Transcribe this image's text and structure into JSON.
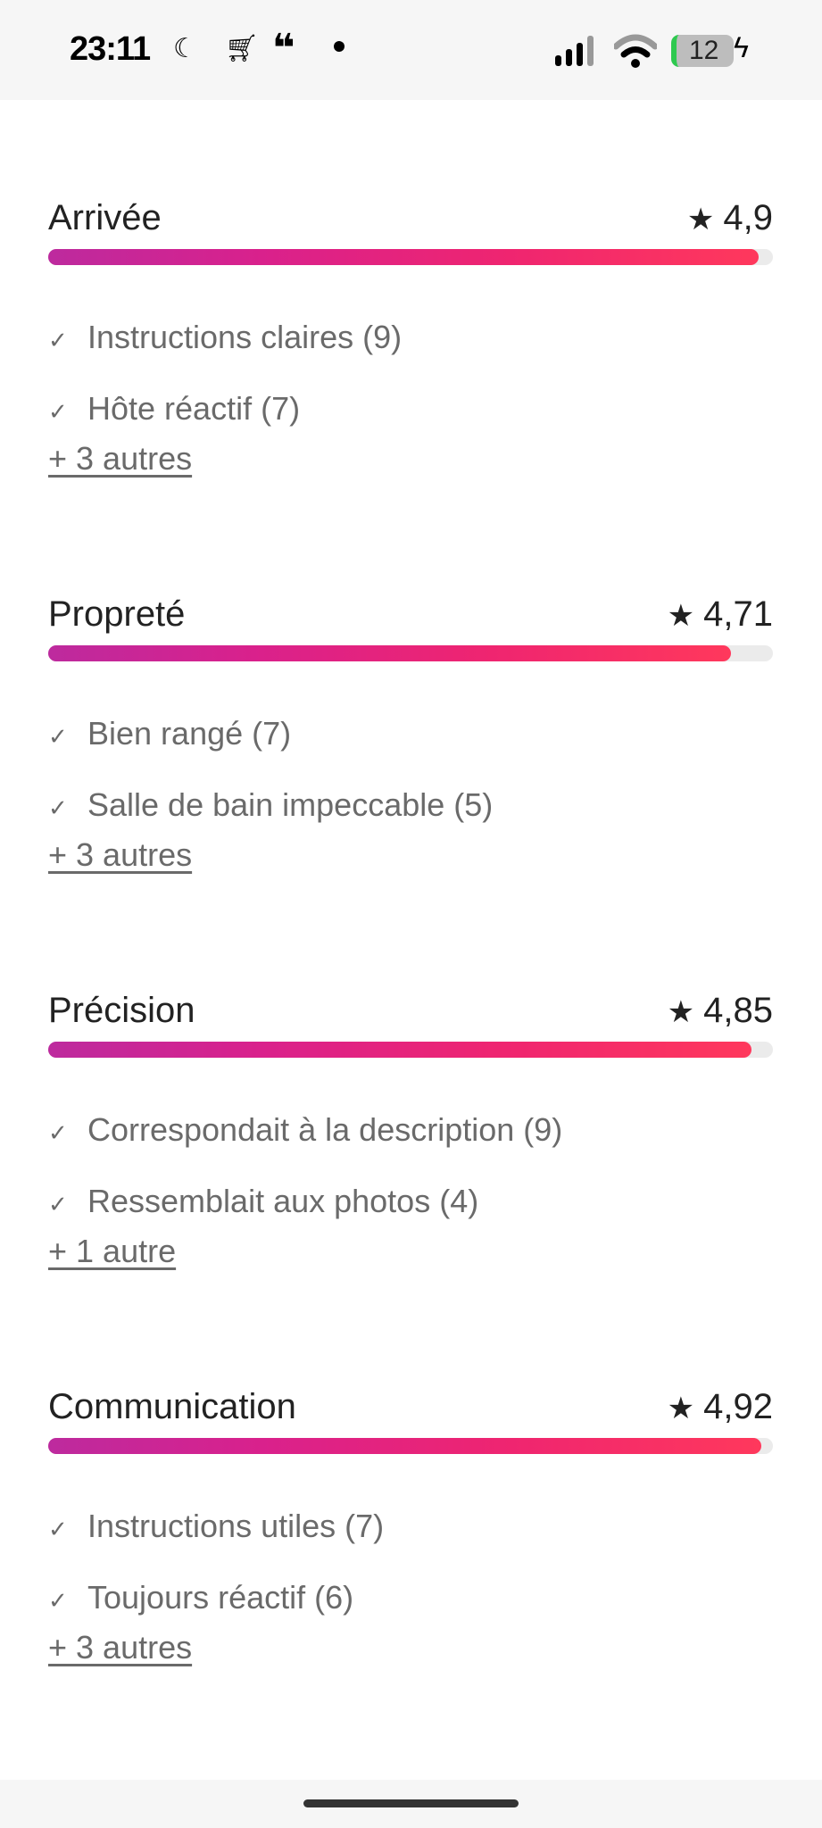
{
  "status_bar": {
    "time": "23:11",
    "battery": "12",
    "icons": [
      "moon-icon",
      "cart-icon",
      "quote-icon",
      "dot-icon",
      "signal-icon",
      "wifi-icon",
      "battery-icon",
      "charging-icon"
    ]
  },
  "accent_gradient": [
    "#bd2a9e",
    "#ff385c"
  ],
  "categories": [
    {
      "title": "Arrivée",
      "rating": "4,9",
      "value": 4.9,
      "max": 5,
      "items": [
        "Instructions claires (9)",
        "Hôte réactif (7)"
      ],
      "more": "+ 3 autres"
    },
    {
      "title": "Propreté",
      "rating": "4,71",
      "value": 4.71,
      "max": 5,
      "items": [
        "Bien rangé (7)",
        "Salle de bain impeccable (5)"
      ],
      "more": "+ 3 autres"
    },
    {
      "title": "Précision",
      "rating": "4,85",
      "value": 4.85,
      "max": 5,
      "items": [
        "Correspondait à la description (9)",
        "Ressemblait aux photos (4)"
      ],
      "more": "+ 1 autre"
    },
    {
      "title": "Communication",
      "rating": "4,92",
      "value": 4.92,
      "max": 5,
      "items": [
        "Instructions utiles (7)",
        "Toujours réactif (6)"
      ],
      "more": "+ 3 autres"
    }
  ]
}
